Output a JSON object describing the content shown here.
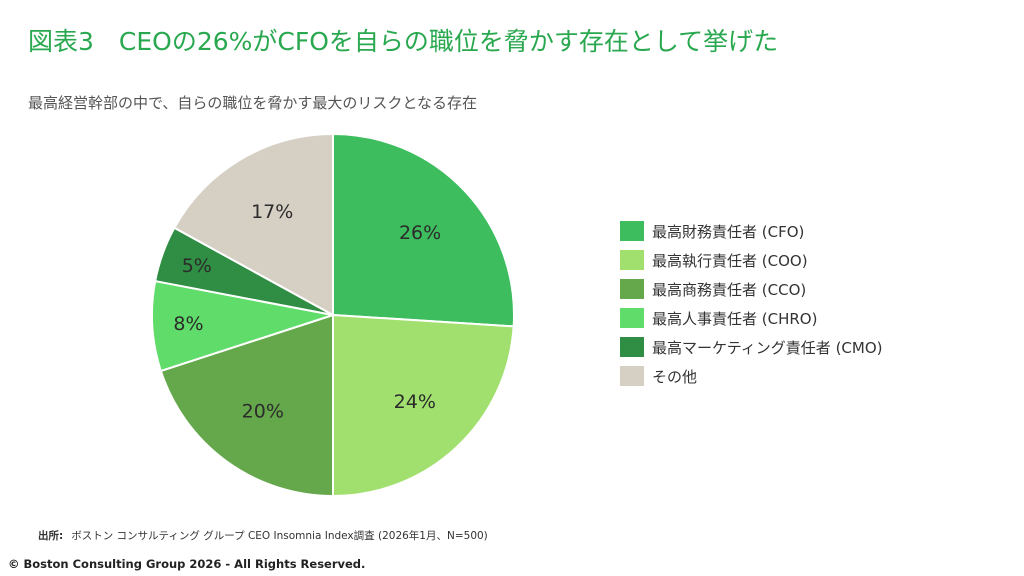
{
  "title": "図表3　CEOの26%がCFOを自らの職位を脅かす存在として挙げた",
  "subtitle": "最高経営幹部の中で、自らの職位を脅かす最大のリスクとなる存在",
  "chart_data": {
    "type": "pie",
    "title": "",
    "start_angle_deg": 0,
    "direction": "clockwise",
    "legend_position": "right",
    "slices": [
      {
        "label": "最高財務責任者 (CFO)",
        "value": 26,
        "display": "26%",
        "color": "#3dbd5d"
      },
      {
        "label": "最高執行責任者 (COO)",
        "value": 24,
        "display": "24%",
        "color": "#a1e06e"
      },
      {
        "label": "最高商務責任者 (CCO)",
        "value": 20,
        "display": "20%",
        "color": "#65a84c"
      },
      {
        "label": "最高人事責任者 (CHRO)",
        "value": 8,
        "display": "8%",
        "color": "#5fdc69"
      },
      {
        "label": "最高マーケティング責任者 (CMO)",
        "value": 5,
        "display": "5%",
        "color": "#2f8e43"
      },
      {
        "label": "その他",
        "value": 17,
        "display": "17%",
        "color": "#d6cfc4"
      }
    ]
  },
  "source": {
    "key": "出所:",
    "text": "ボストン コンサルティング グループ CEO Insomnia Index調査 (2026年1月、N=500)"
  },
  "copyright": "© Boston Consulting Group 2026 - All Rights Reserved."
}
